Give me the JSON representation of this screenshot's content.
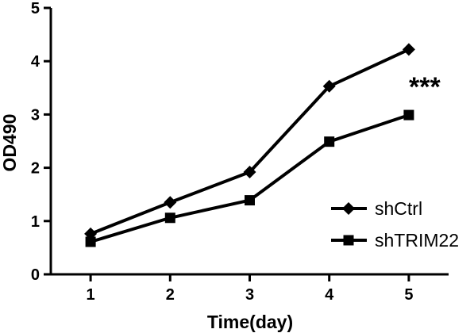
{
  "chart_data": {
    "type": "line",
    "title": "",
    "xlabel": "Time(day)",
    "ylabel": "OD490",
    "x": [
      1,
      2,
      3,
      4,
      5
    ],
    "xlim": [
      0.5,
      5.5
    ],
    "ylim": [
      0,
      5
    ],
    "yticks": [
      0,
      1,
      2,
      3,
      4,
      5
    ],
    "xticks": [
      1,
      2,
      3,
      4,
      5
    ],
    "grid": false,
    "legend_position": "bottom-right",
    "series": [
      {
        "name": "shCtrl",
        "marker": "diamond",
        "color": "#000000",
        "values": [
          0.76,
          1.35,
          1.92,
          3.53,
          4.22
        ]
      },
      {
        "name": "shTRIM22",
        "marker": "square",
        "color": "#000000",
        "values": [
          0.61,
          1.06,
          1.39,
          2.49,
          2.99
        ]
      }
    ],
    "annotations": [
      {
        "text": "***",
        "x": 5,
        "y": 3.5
      }
    ]
  }
}
